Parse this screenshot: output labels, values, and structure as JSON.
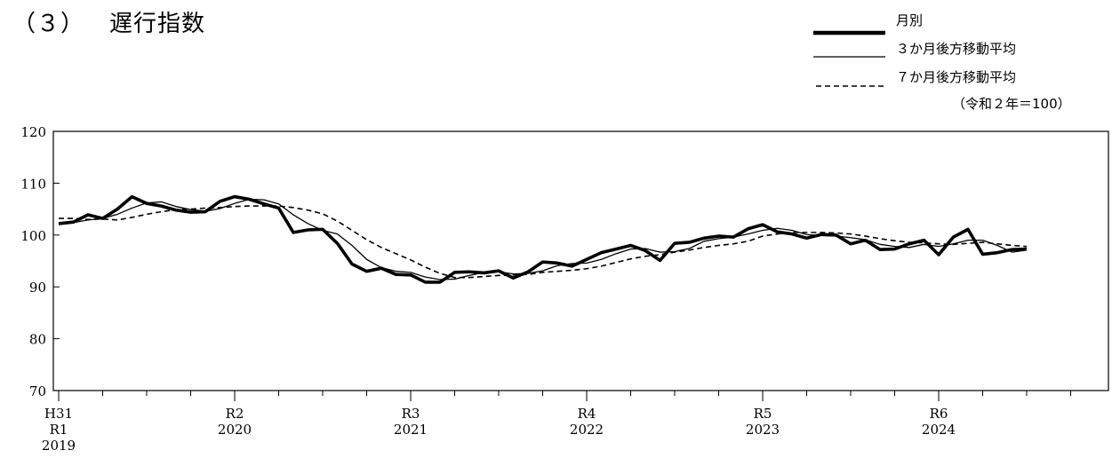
{
  "heading": {
    "number": "（３）",
    "title": "遅行指数"
  },
  "chart_data": {
    "type": "line",
    "unit_note": "（令和２年＝100）",
    "ylim": [
      70,
      120
    ],
    "yticks": [
      70,
      80,
      90,
      100,
      110,
      120
    ],
    "grid": false,
    "legend_position": "top-right",
    "x_start": "2019-01",
    "x_months": 72,
    "year_labels": [
      {
        "month_index": 0,
        "lines": [
          "H31",
          "R1",
          "2019"
        ]
      },
      {
        "month_index": 12,
        "lines": [
          "R2",
          "2020"
        ]
      },
      {
        "month_index": 24,
        "lines": [
          "R3",
          "2021"
        ]
      },
      {
        "month_index": 36,
        "lines": [
          "R4",
          "2022"
        ]
      },
      {
        "month_index": 48,
        "lines": [
          "R5",
          "2023"
        ]
      },
      {
        "month_index": 60,
        "lines": [
          "R6",
          "2024"
        ]
      }
    ],
    "series": [
      {
        "name": "月別",
        "style": "thick",
        "values": [
          102.2,
          102.5,
          103.9,
          103.2,
          105.0,
          107.4,
          106.1,
          105.6,
          104.8,
          104.4,
          104.5,
          106.5,
          107.4,
          106.9,
          106.0,
          105.2,
          100.5,
          101.0,
          101.1,
          98.4,
          94.4,
          93.0,
          93.6,
          92.4,
          92.3,
          90.9,
          90.9,
          92.8,
          92.9,
          92.7,
          93.1,
          91.7,
          92.9,
          94.8,
          94.6,
          94.0,
          95.3,
          96.6,
          97.3,
          98.0,
          97.0,
          95.1,
          98.4,
          98.6,
          99.4,
          99.8,
          99.6,
          101.2,
          102.0,
          100.6,
          100.2,
          99.4,
          100.1,
          100.0,
          98.3,
          99.0,
          97.2,
          97.3,
          98.3,
          99.0,
          96.2,
          99.6,
          101.1,
          96.3,
          96.6,
          97.2,
          97.3
        ]
      },
      {
        "name": "３か月後方移動平均",
        "style": "thin",
        "values": [
          102.2,
          102.4,
          102.9,
          103.2,
          104.0,
          105.2,
          106.2,
          106.4,
          105.5,
          104.9,
          104.6,
          105.1,
          106.1,
          106.9,
          106.8,
          106.0,
          103.9,
          102.2,
          100.9,
          100.2,
          98.0,
          95.3,
          93.7,
          93.0,
          92.8,
          91.9,
          91.4,
          91.5,
          92.2,
          92.8,
          92.9,
          92.5,
          92.6,
          93.1,
          94.1,
          94.5,
          94.6,
          95.3,
          96.4,
          97.3,
          97.4,
          96.7,
          96.8,
          97.4,
          98.8,
          99.3,
          99.6,
          100.2,
          100.9,
          101.3,
          100.9,
          100.1,
          99.9,
          99.8,
          99.5,
          99.1,
          98.2,
          97.8,
          97.6,
          98.2,
          97.8,
          98.3,
          99.0,
          99.0,
          98.0,
          96.7,
          97.1
        ]
      },
      {
        "name": "７か月後方移動平均",
        "style": "dashed",
        "values": [
          103.2,
          103.2,
          103.0,
          103.1,
          102.9,
          103.4,
          104.0,
          104.5,
          104.9,
          105.0,
          105.2,
          105.3,
          105.5,
          105.6,
          105.6,
          105.6,
          105.3,
          104.8,
          104.1,
          102.7,
          100.9,
          99.1,
          97.6,
          96.4,
          95.2,
          93.8,
          92.6,
          91.8,
          91.8,
          92.0,
          92.2,
          92.3,
          92.4,
          92.8,
          93.0,
          93.2,
          93.5,
          94.0,
          94.7,
          95.4,
          95.9,
          96.2,
          96.7,
          97.1,
          97.6,
          98.0,
          98.3,
          98.8,
          99.8,
          100.2,
          100.5,
          100.5,
          100.5,
          100.4,
          100.2,
          99.8,
          99.3,
          98.9,
          98.6,
          98.5,
          98.3,
          98.2,
          98.4,
          98.6,
          98.3,
          98.0,
          97.8
        ]
      }
    ]
  }
}
